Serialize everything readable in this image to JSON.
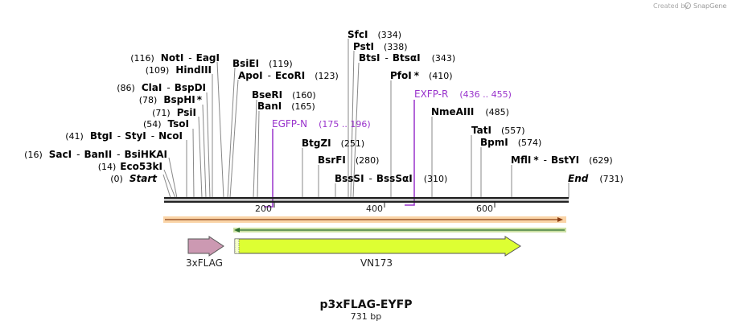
{
  "watermark": {
    "text": "Created by",
    "brand": "SnapGene"
  },
  "sequence": {
    "name": "p3xFLAG-EYFP",
    "length_label": "731 bp",
    "length_bp": 731
  },
  "ruler_ticks": [
    {
      "bp": 200,
      "label": "200"
    },
    {
      "bp": 400,
      "label": "400"
    },
    {
      "bp": 600,
      "label": "600"
    }
  ],
  "site_labels": [
    {
      "pos": "(0)",
      "names": [
        "Start"
      ],
      "italic": true
    },
    {
      "pos": "(14)",
      "names": [
        "Eco53kI"
      ]
    },
    {
      "pos": "(16)",
      "names": [
        "SacI",
        "BanII",
        "BsiHKAI"
      ]
    },
    {
      "pos": "(41)",
      "names": [
        "BtgI",
        "StyI",
        "NcoI"
      ]
    },
    {
      "pos": "(54)",
      "names": [
        "TsoI"
      ]
    },
    {
      "pos": "(71)",
      "names": [
        "PsiI"
      ]
    },
    {
      "pos": "(78)",
      "names": [
        "BspHI"
      ],
      "star": "*"
    },
    {
      "pos": "(86)",
      "names": [
        "ClaI",
        "BspDI"
      ]
    },
    {
      "pos": "(109)",
      "names": [
        "HindIII"
      ]
    },
    {
      "pos": "(116)",
      "names": [
        "NotI",
        "EagI"
      ]
    },
    {
      "names": [
        "BsiEI"
      ],
      "pos": "(119)"
    },
    {
      "names": [
        "ApoI",
        "EcoRI"
      ],
      "pos": "(123)"
    },
    {
      "names": [
        "BseRI"
      ],
      "pos": "(160)"
    },
    {
      "names": [
        "BanI"
      ],
      "pos": "(165)"
    },
    {
      "names": [
        "BtgZI"
      ],
      "pos": "(251)"
    },
    {
      "names": [
        "BsrFI"
      ],
      "pos": "(280)"
    },
    {
      "names": [
        "BssSI",
        "BssSαI"
      ],
      "pos": "(310)"
    },
    {
      "names": [
        "SfcI"
      ],
      "pos": "(334)"
    },
    {
      "names": [
        "PstI"
      ],
      "pos": "(338)"
    },
    {
      "names": [
        "BtsI",
        "BtsαI"
      ],
      "pos": "(343)"
    },
    {
      "names": [
        "PfoI"
      ],
      "star": "*",
      "pos": "(410)"
    },
    {
      "names": [
        "NmeAIII"
      ],
      "pos": "(485)"
    },
    {
      "names": [
        "TatI"
      ],
      "pos": "(557)"
    },
    {
      "names": [
        "BpmI"
      ],
      "pos": "(574)"
    },
    {
      "names": [
        "MflI",
        "BstYI"
      ],
      "star": "*",
      "pos": "(629)"
    },
    {
      "names": [
        "End"
      ],
      "italic": true,
      "pos": "(731)"
    }
  ],
  "primers": [
    {
      "name": "EGFP-N",
      "range": "(175 .. 196)",
      "bp": 196,
      "color": "#9933cc"
    },
    {
      "name": "EXFP-R",
      "range": "(436 .. 455)",
      "bp": 436,
      "color": "#9933cc"
    }
  ],
  "features": [
    {
      "name": "3xFLAG",
      "start": 46,
      "end": 111,
      "color": "#cc99b2",
      "direction": "forward"
    },
    {
      "name": "VN173",
      "start": 131,
      "end": 649,
      "color": "#ddff33",
      "direction": "forward"
    }
  ],
  "colors": {
    "orange_bar": "#f59f3c",
    "green_bar": "#9ac34a",
    "backbone": "#222222",
    "label_line": "#888888"
  }
}
